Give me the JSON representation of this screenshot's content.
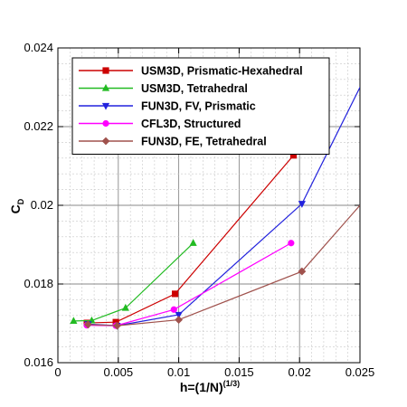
{
  "chart_data": {
    "type": "line",
    "xlabel": "h=(1/N)",
    "xlabel_sup": "(1/3)",
    "ylabel": "C",
    "ylabel_sub": "D",
    "xlim": [
      0,
      0.025
    ],
    "ylim": [
      0.016,
      0.024
    ],
    "x_ticks": [
      0,
      0.005,
      0.01,
      0.015,
      0.02,
      0.025
    ],
    "x_tick_labels": [
      "0",
      "0.005",
      "0.01",
      "0.015",
      "0.02",
      "0.025"
    ],
    "y_ticks": [
      0.016,
      0.018,
      0.02,
      0.022,
      0.024
    ],
    "y_tick_labels": [
      "0.016",
      "0.018",
      "0.02",
      "0.022",
      "0.024"
    ],
    "grid": true,
    "legend_position": "top-left",
    "series": [
      {
        "name": "USM3D, Prismatic-Hexahedral",
        "color": "#cc0000",
        "marker": "square",
        "x": [
          0.0024,
          0.0048,
          0.0097,
          0.0195
        ],
        "y": [
          0.01701,
          0.01703,
          0.01775,
          0.02127
        ]
      },
      {
        "name": "USM3D, Tetrahedral",
        "color": "#22bb22",
        "marker": "triangle-up",
        "x": [
          0.0013,
          0.0028,
          0.0056,
          0.0112
        ],
        "y": [
          0.01706,
          0.01707,
          0.01739,
          0.01904
        ]
      },
      {
        "name": "FUN3D, FV, Prismatic",
        "color": "#2222dd",
        "marker": "triangle-down",
        "x": [
          0.0025,
          0.0049,
          0.01,
          0.0202,
          0.025
        ],
        "y": [
          0.01698,
          0.01694,
          0.01722,
          0.02004,
          0.023
        ]
      },
      {
        "name": "CFL3D, Structured",
        "color": "#ff00ff",
        "marker": "circle",
        "x": [
          0.0024,
          0.0048,
          0.0096,
          0.0193
        ],
        "y": [
          0.01695,
          0.01694,
          0.01735,
          0.01904
        ]
      },
      {
        "name": "FUN3D, FE, Tetrahedral",
        "color": "#a0524d",
        "marker": "diamond",
        "x": [
          0.0025,
          0.0049,
          0.01,
          0.0202,
          0.025
        ],
        "y": [
          0.01697,
          0.01694,
          0.01709,
          0.01832,
          0.02
        ]
      }
    ],
    "marker_counts": [
      4,
      4,
      4,
      4,
      4
    ]
  }
}
